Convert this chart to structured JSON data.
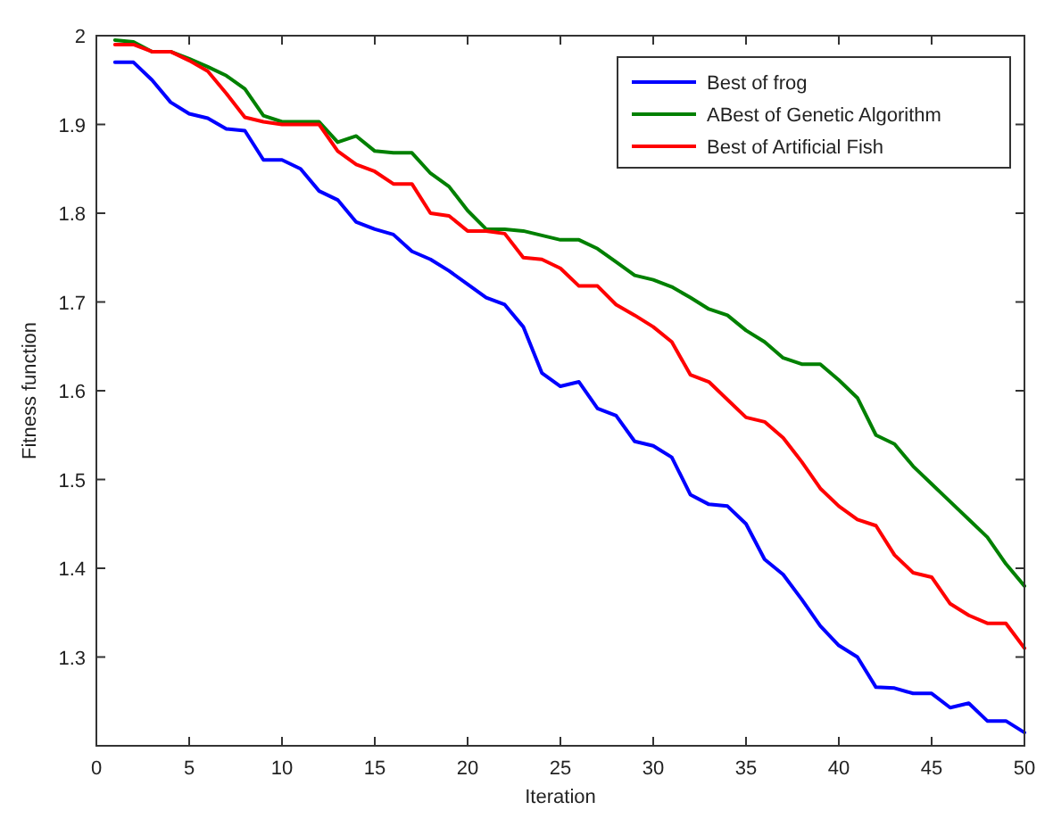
{
  "chart_data": {
    "type": "line",
    "xlabel": "Iteration",
    "ylabel": "Fitness function",
    "x": [
      1,
      2,
      3,
      4,
      5,
      6,
      7,
      8,
      9,
      10,
      11,
      12,
      13,
      14,
      15,
      16,
      17,
      18,
      19,
      20,
      21,
      22,
      23,
      24,
      25,
      26,
      27,
      28,
      29,
      30,
      31,
      32,
      33,
      34,
      35,
      36,
      37,
      38,
      39,
      40,
      41,
      42,
      43,
      44,
      45,
      46,
      47,
      48,
      49,
      50
    ],
    "series": [
      {
        "name": "Best of frog",
        "color": "#0000ff",
        "values": [
          1.97,
          1.97,
          1.95,
          1.925,
          1.912,
          1.907,
          1.895,
          1.893,
          1.86,
          1.86,
          1.85,
          1.825,
          1.815,
          1.79,
          1.782,
          1.776,
          1.757,
          1.748,
          1.735,
          1.72,
          1.705,
          1.697,
          1.672,
          1.62,
          1.605,
          1.61,
          1.58,
          1.572,
          1.543,
          1.538,
          1.525,
          1.483,
          1.472,
          1.47,
          1.45,
          1.41,
          1.393,
          1.365,
          1.335,
          1.313,
          1.3,
          1.266,
          1.265,
          1.259,
          1.259,
          1.243,
          1.248,
          1.228,
          1.228,
          1.215
        ]
      },
      {
        "name": "ABest of Genetic Algorithm",
        "color": "#008000",
        "values": [
          1.995,
          1.993,
          1.982,
          1.982,
          1.974,
          1.965,
          1.955,
          1.94,
          1.91,
          1.903,
          1.903,
          1.903,
          1.88,
          1.887,
          1.87,
          1.868,
          1.868,
          1.845,
          1.83,
          1.803,
          1.782,
          1.782,
          1.78,
          1.775,
          1.77,
          1.77,
          1.76,
          1.745,
          1.73,
          1.725,
          1.717,
          1.705,
          1.692,
          1.685,
          1.668,
          1.655,
          1.637,
          1.63,
          1.63,
          1.612,
          1.592,
          1.55,
          1.54,
          1.515,
          1.495,
          1.475,
          1.455,
          1.435,
          1.405,
          1.38
        ]
      },
      {
        "name": "Best of Artificial Fish",
        "color": "#ff0000",
        "values": [
          1.99,
          1.99,
          1.982,
          1.982,
          1.972,
          1.96,
          1.935,
          1.908,
          1.903,
          1.9,
          1.9,
          1.9,
          1.87,
          1.855,
          1.847,
          1.833,
          1.833,
          1.8,
          1.797,
          1.78,
          1.78,
          1.777,
          1.75,
          1.748,
          1.738,
          1.718,
          1.718,
          1.697,
          1.685,
          1.672,
          1.655,
          1.618,
          1.61,
          1.59,
          1.57,
          1.565,
          1.547,
          1.52,
          1.49,
          1.47,
          1.455,
          1.448,
          1.415,
          1.395,
          1.39,
          1.36,
          1.347,
          1.338,
          1.338,
          1.31
        ]
      }
    ],
    "xlim": [
      0,
      50
    ],
    "xticks": [
      0,
      5,
      10,
      15,
      20,
      25,
      30,
      35,
      40,
      45,
      50
    ],
    "ylim": [
      1.2,
      2
    ],
    "yticks": [
      1.3,
      1.4,
      1.5,
      1.6,
      1.7,
      1.8,
      1.9,
      2
    ],
    "legend": "top right",
    "marker": "none",
    "line_style": "solid",
    "grid": false
  }
}
